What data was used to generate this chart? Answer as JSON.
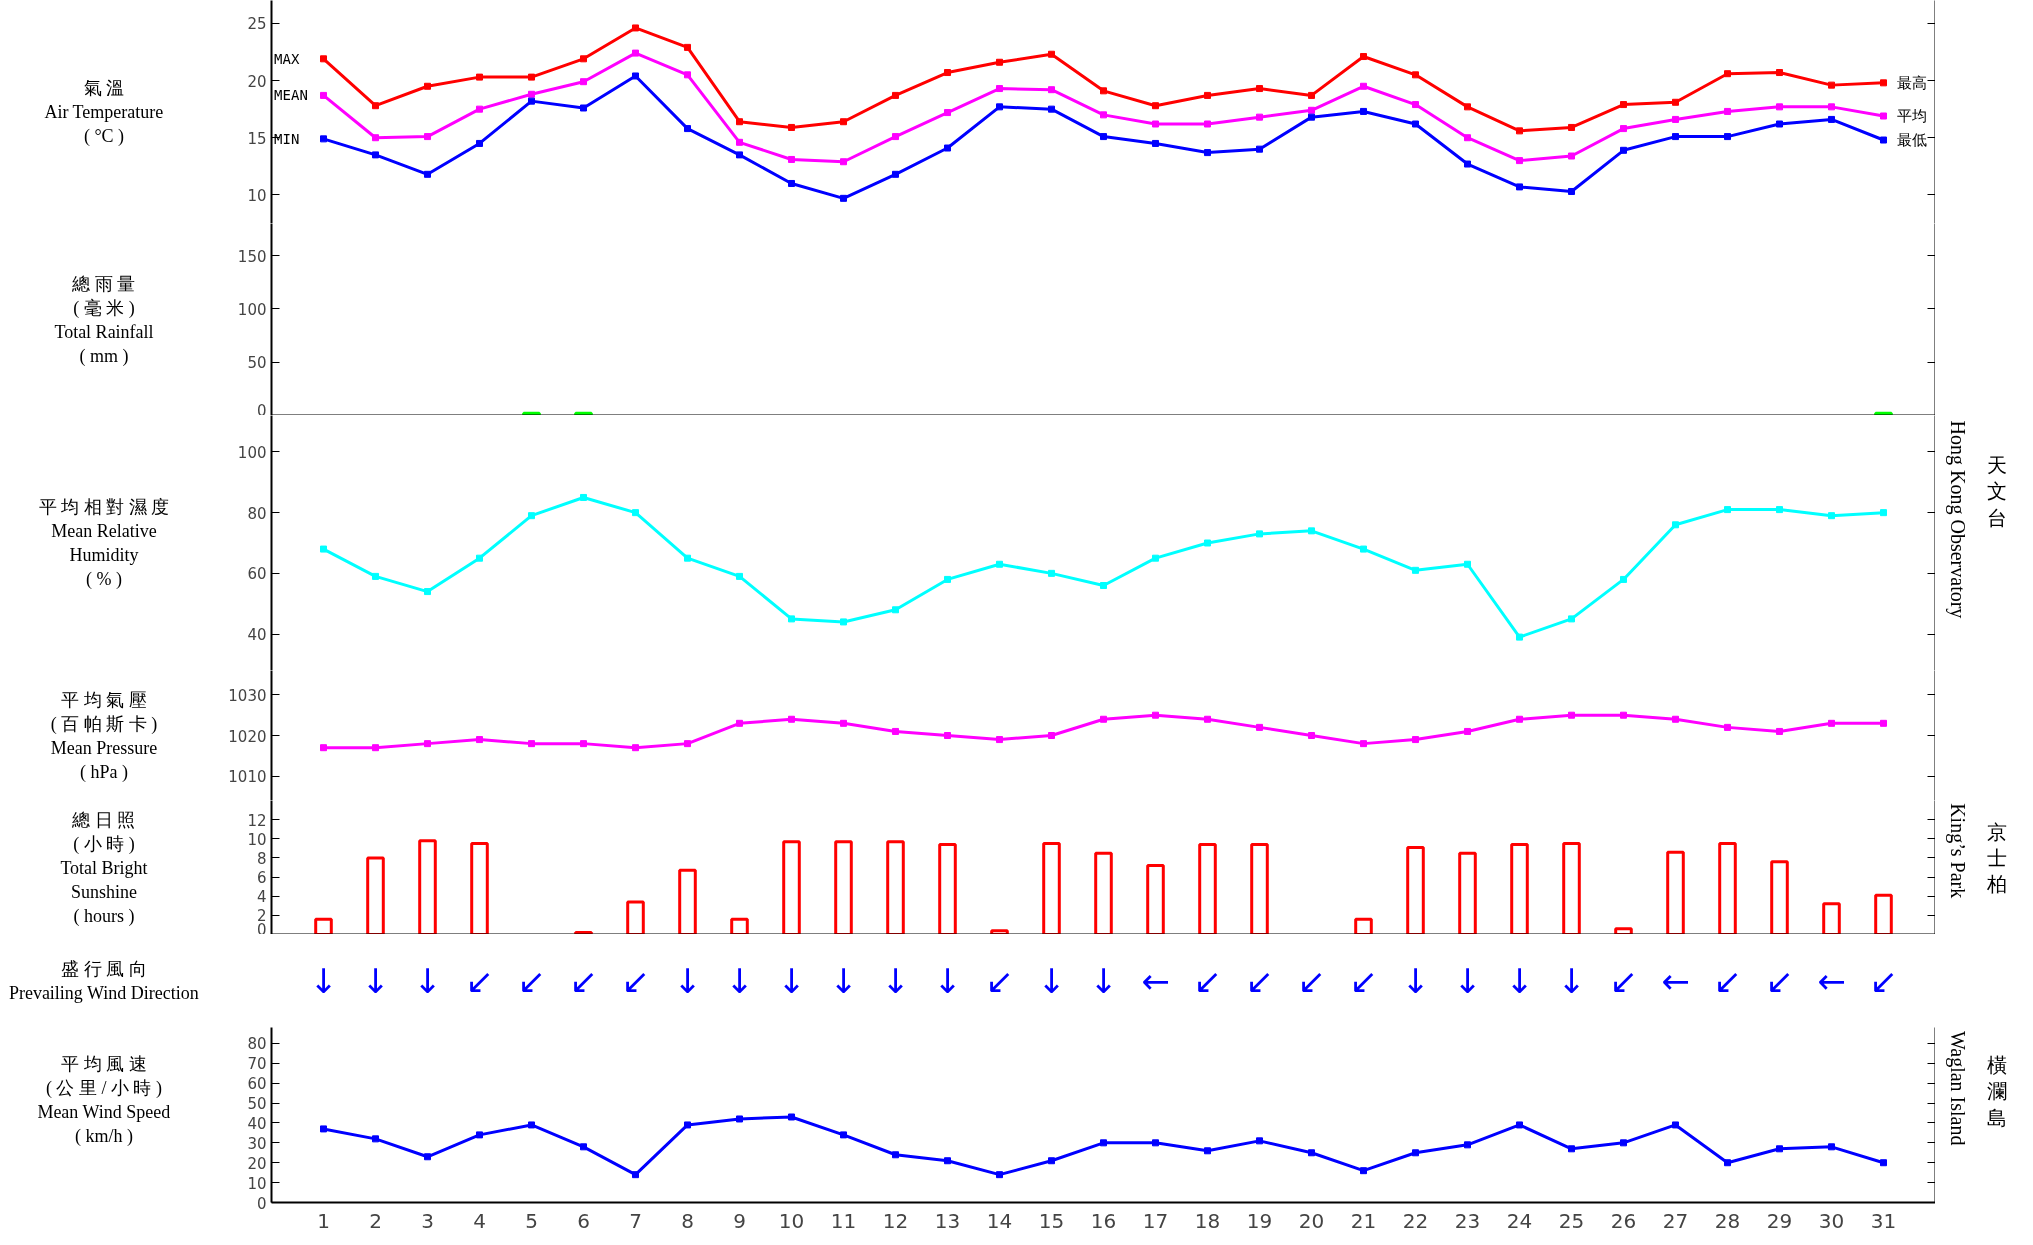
{
  "chart_data": [
    {
      "type": "line",
      "ylabel": "氣 溫\nAir Temperature\n( °C )",
      "x": [
        1,
        2,
        3,
        4,
        5,
        6,
        7,
        8,
        9,
        10,
        11,
        12,
        13,
        14,
        15,
        16,
        17,
        18,
        19,
        20,
        21,
        22,
        23,
        24,
        25,
        26,
        27,
        28,
        29,
        30,
        31
      ],
      "xlim": [
        0,
        32
      ],
      "ylim": [
        7.5,
        27
      ],
      "yticks": [
        10,
        15,
        20,
        25
      ],
      "tick_labels": "y",
      "marker": "square",
      "series": [
        {
          "color": "#ff0000",
          "values": [
            21.9,
            17.8,
            19.5,
            20.3,
            20.3,
            21.9,
            24.6,
            22.9,
            16.4,
            15.9,
            16.4,
            18.7,
            20.7,
            21.6,
            22.3,
            19.1,
            17.8,
            18.7,
            19.3,
            18.7,
            22.1,
            20.5,
            17.7,
            15.6,
            15.9,
            17.9,
            18.1,
            20.6,
            20.7,
            19.6,
            19.8
          ]
        },
        {
          "color": "#ff00ff",
          "values": [
            18.7,
            15.0,
            15.1,
            17.5,
            18.8,
            19.9,
            22.4,
            20.5,
            14.6,
            13.1,
            12.9,
            15.1,
            17.2,
            19.3,
            19.2,
            17.0,
            16.2,
            16.2,
            16.8,
            17.4,
            19.5,
            17.9,
            15.0,
            13.0,
            13.4,
            15.8,
            16.6,
            17.3,
            17.7,
            17.7,
            16.9
          ]
        },
        {
          "color": "#0000ff",
          "values": [
            14.9,
            13.5,
            11.8,
            14.5,
            18.2,
            17.6,
            20.4,
            15.8,
            13.5,
            11.0,
            9.7,
            11.8,
            14.1,
            17.7,
            17.5,
            15.1,
            14.5,
            13.7,
            14.0,
            16.8,
            17.3,
            16.2,
            12.7,
            10.7,
            10.3,
            13.9,
            15.1,
            15.1,
            16.2,
            16.6,
            14.8
          ]
        }
      ],
      "annotations": [
        "MAX",
        "MEAN",
        "MIN",
        "最高",
        "平均",
        "最低"
      ]
    },
    {
      "type": "bar",
      "ylabel": "總 雨 量\n( 毫 米 )\nTotal Rainfall\n( mm )",
      "x": [
        5,
        6,
        31
      ],
      "xlim": [
        0,
        32
      ],
      "ylim": [
        0,
        180
      ],
      "yticks": [
        0,
        50,
        100,
        150
      ],
      "tick_labels": "y",
      "color": "#00ff00",
      "values": [
        2,
        2,
        2
      ]
    },
    {
      "type": "line",
      "ylabel": "平 均 相 對 濕 度\nMean Relative\nHumidity\n( % )",
      "x": [
        1,
        2,
        3,
        4,
        5,
        6,
        7,
        8,
        9,
        10,
        11,
        12,
        13,
        14,
        15,
        16,
        17,
        18,
        19,
        20,
        21,
        22,
        23,
        24,
        25,
        26,
        27,
        28,
        29,
        30,
        31
      ],
      "xlim": [
        0,
        32
      ],
      "ylim": [
        28,
        112
      ],
      "yticks": [
        40,
        60,
        80,
        100
      ],
      "tick_labels": "y",
      "marker": "square",
      "color": "#00ffff",
      "values": [
        68,
        59,
        54,
        65,
        79,
        85,
        80,
        65,
        59,
        45,
        44,
        48,
        58,
        63,
        60,
        56,
        65,
        70,
        73,
        74,
        68,
        61,
        63,
        39,
        45,
        58,
        76,
        81,
        81,
        79,
        80
      ],
      "annotations": [
        "Hong Kong Observatory",
        "天文台"
      ]
    },
    {
      "type": "line",
      "ylabel": "平 均 氣 壓\n( 百 帕 斯 卡 )\nMean Pressure\n( hPa )",
      "x": [
        1,
        2,
        3,
        4,
        5,
        6,
        7,
        8,
        9,
        10,
        11,
        12,
        13,
        14,
        15,
        16,
        17,
        18,
        19,
        20,
        21,
        22,
        23,
        24,
        25,
        26,
        27,
        28,
        29,
        30,
        31
      ],
      "xlim": [
        0,
        32
      ],
      "ylim": [
        1004,
        1036
      ],
      "yticks": [
        1010,
        1020,
        1030
      ],
      "tick_labels": "y",
      "marker": "square",
      "color": "#ff00ff",
      "values": [
        1017,
        1017,
        1018,
        1019,
        1018,
        1018,
        1017,
        1018,
        1023,
        1024,
        1023,
        1021,
        1020,
        1019,
        1020,
        1024,
        1025,
        1024,
        1022,
        1020,
        1018,
        1019,
        1021,
        1024,
        1025,
        1025,
        1024,
        1022,
        1021,
        1023,
        1023
      ]
    },
    {
      "type": "bar",
      "ylabel": "總 日 照\n( 小 時 )\nTotal Bright\nSunshine\n( hours )",
      "x": [
        1,
        2,
        3,
        4,
        5,
        6,
        7,
        8,
        9,
        10,
        11,
        12,
        13,
        14,
        15,
        16,
        17,
        18,
        19,
        20,
        21,
        22,
        23,
        24,
        25,
        26,
        27,
        28,
        29,
        30,
        31
      ],
      "xlim": [
        0,
        32
      ],
      "ylim": [
        0,
        14
      ],
      "yticks": [
        0,
        2,
        4,
        6,
        8,
        10,
        12
      ],
      "tick_labels": "y",
      "color": "#ff0000",
      "values": [
        1.6,
        8.0,
        9.8,
        9.5,
        null,
        0.2,
        3.4,
        6.7,
        1.6,
        9.7,
        9.7,
        9.7,
        9.4,
        0.4,
        9.5,
        8.5,
        7.2,
        9.4,
        9.4,
        null,
        1.6,
        9.1,
        8.5,
        9.4,
        9.5,
        0.6,
        8.6,
        9.5,
        7.6,
        3.2,
        4.1
      ],
      "annotations": [
        "King’s Park",
        "京士柏"
      ]
    },
    {
      "type": "other",
      "ylabel": "盛 行 風 向\nPrevailing Wind Direction",
      "color": "#0000ff",
      "annotations": [
        "↓",
        "↓",
        "↓",
        "↙",
        "↙",
        "↙",
        "↙",
        "↓",
        "↓",
        "↓",
        "↓",
        "↓",
        "↓",
        "↙",
        "↓",
        "↓",
        "←",
        "↙",
        "↙",
        "↙",
        "↙",
        "↓",
        "↓",
        "↓",
        "↓",
        "↙",
        "←",
        "↙",
        "↙",
        "←",
        "↙"
      ]
    },
    {
      "type": "line",
      "ylabel": "平 均 風 速\n( 公 里 / 小 時 )\nMean Wind Speed\n( km/h )",
      "x": [
        1,
        2,
        3,
        4,
        5,
        6,
        7,
        8,
        9,
        10,
        11,
        12,
        13,
        14,
        15,
        16,
        17,
        18,
        19,
        20,
        21,
        22,
        23,
        24,
        25,
        26,
        27,
        28,
        29,
        30,
        31
      ],
      "xlim": [
        0,
        32
      ],
      "xticks": [
        1,
        2,
        3,
        4,
        5,
        6,
        7,
        8,
        9,
        10,
        11,
        12,
        13,
        14,
        15,
        16,
        17,
        18,
        19,
        20,
        21,
        22,
        23,
        24,
        25,
        26,
        27,
        28,
        29,
        30,
        31
      ],
      "ylim": [
        0,
        88
      ],
      "yticks": [
        0,
        10,
        20,
        30,
        40,
        50,
        60,
        70,
        80
      ],
      "marker": "square",
      "color": "#0000ff",
      "values": [
        37,
        32,
        23,
        34,
        39,
        28,
        14,
        39,
        42,
        43,
        34,
        24,
        21,
        14,
        21,
        30,
        30,
        26,
        31,
        25,
        16,
        25,
        29,
        39,
        27,
        30,
        39,
        20,
        27,
        28,
        20
      ],
      "annotations": [
        "Waglan Island",
        "橫瀾島"
      ]
    }
  ]
}
